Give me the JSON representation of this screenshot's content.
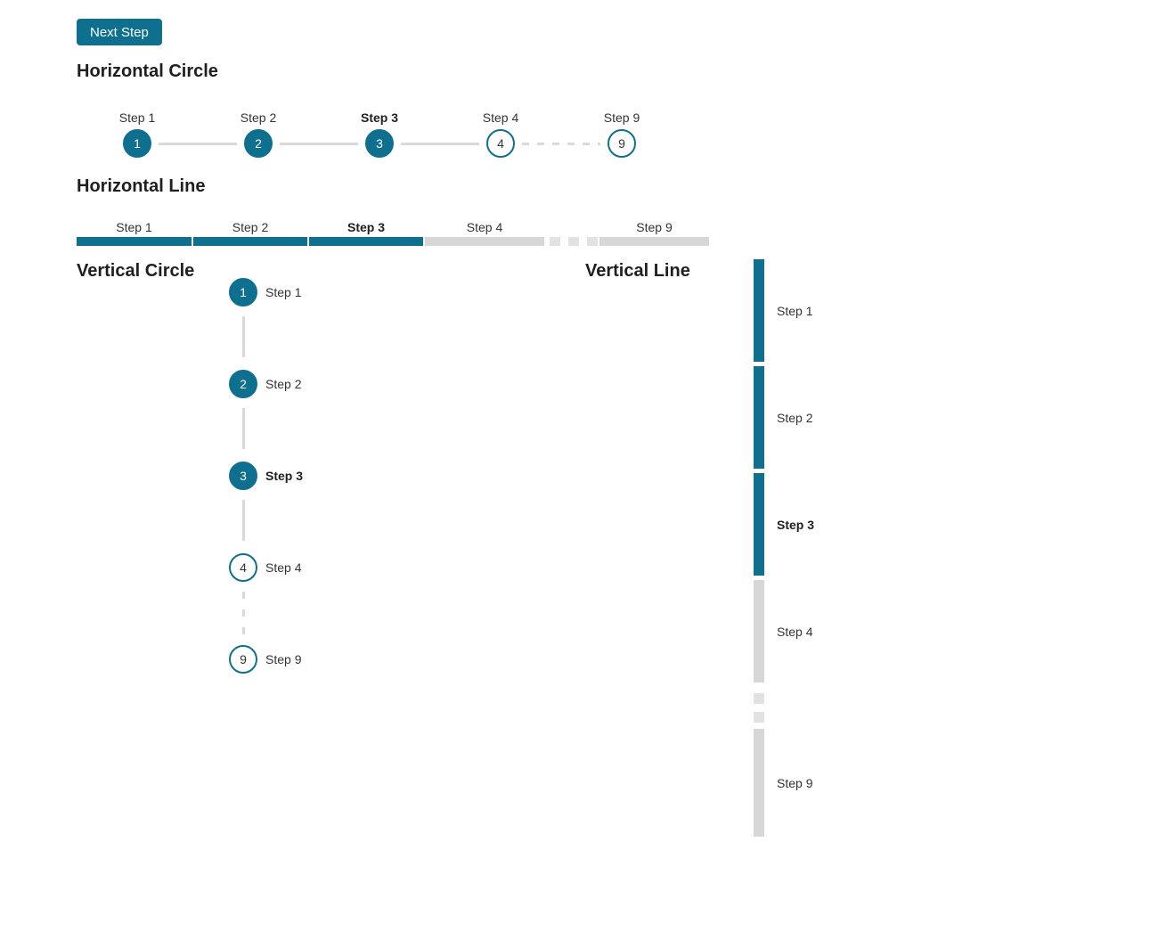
{
  "colors": {
    "accent": "#0e6f8f",
    "track": "#d9d9d9",
    "bar_incomplete": "#d7d7d7",
    "dash_light": "#e2e2e2",
    "text": "#333333",
    "heading": "#1f1f1f"
  },
  "button": {
    "label": "Next Step"
  },
  "sections": {
    "horizontal_circle": {
      "title": "Horizontal Circle",
      "steps": [
        {
          "label": "Step 1",
          "number": "1",
          "state": "complete"
        },
        {
          "label": "Step 2",
          "number": "2",
          "state": "complete"
        },
        {
          "label": "Step 3",
          "number": "3",
          "state": "current"
        },
        {
          "label": "Step 4",
          "number": "4",
          "state": "incomplete"
        },
        {
          "label": "Step 9",
          "number": "9",
          "state": "incomplete",
          "connector_before": "dashed"
        }
      ]
    },
    "horizontal_line": {
      "title": "Horizontal Line",
      "steps": [
        {
          "label": "Step 1",
          "state": "complete"
        },
        {
          "label": "Step 2",
          "state": "complete"
        },
        {
          "label": "Step 3",
          "state": "current"
        },
        {
          "label": "Step 4",
          "state": "incomplete"
        },
        {
          "label": "Step 9",
          "state": "incomplete",
          "connector_before": "dashed"
        }
      ]
    },
    "vertical_circle": {
      "title": "Vertical Circle",
      "steps": [
        {
          "label": "Step 1",
          "number": "1",
          "state": "complete"
        },
        {
          "label": "Step 2",
          "number": "2",
          "state": "complete"
        },
        {
          "label": "Step 3",
          "number": "3",
          "state": "current"
        },
        {
          "label": "Step 4",
          "number": "4",
          "state": "incomplete"
        },
        {
          "label": "Step 9",
          "number": "9",
          "state": "incomplete",
          "connector_before": "dashed"
        }
      ]
    },
    "vertical_line": {
      "title": "Vertical Line",
      "steps": [
        {
          "label": "Step 1",
          "state": "complete"
        },
        {
          "label": "Step 2",
          "state": "complete"
        },
        {
          "label": "Step 3",
          "state": "current"
        },
        {
          "label": "Step 4",
          "state": "incomplete"
        },
        {
          "label": "Step 9",
          "state": "incomplete",
          "connector_before": "dashed"
        }
      ]
    }
  }
}
